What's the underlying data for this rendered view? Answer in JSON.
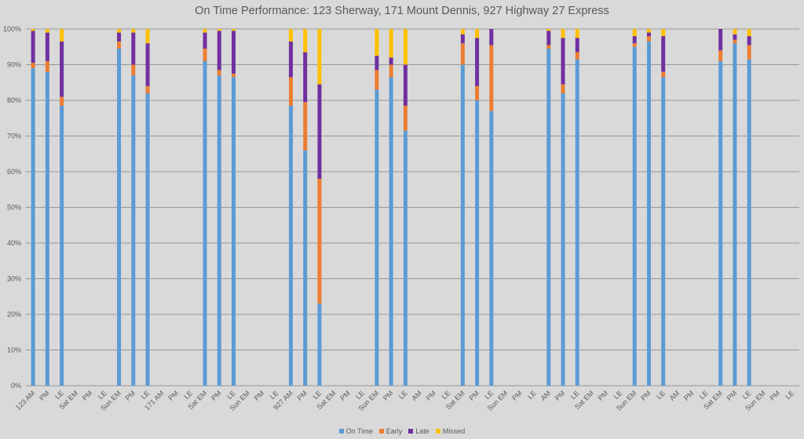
{
  "chart_data": {
    "type": "bar",
    "stacked": true,
    "title": "On Time Performance: 123 Sherway, 171 Mount Dennis, 927 Highway 27 Express",
    "xlabel": "",
    "ylabel": "",
    "ylim": [
      0,
      100
    ],
    "y_ticks": [
      "0%",
      "10%",
      "20%",
      "30%",
      "40%",
      "50%",
      "60%",
      "70%",
      "80%",
      "90%",
      "100%"
    ],
    "grid": true,
    "legend_position": "bottom",
    "category_labels": [
      "123 AM",
      "PM",
      "LE",
      "Sat EM",
      "PM",
      "LE",
      "Sun EM",
      "PM",
      "LE",
      "171 AM",
      "PM",
      "LE",
      "Sat EM",
      "PM",
      "LE",
      "Sun EM",
      "PM",
      "LE",
      "927 AM",
      "PM",
      "LE",
      "Sat EM",
      "PM",
      "LE",
      "Sun EM",
      "PM",
      "LE",
      "AM",
      "PM",
      "LE",
      "Sat EM",
      "PM",
      "LE",
      "Sun EM",
      "PM",
      "LE",
      "AM",
      "PM",
      "LE",
      "Sat EM",
      "PM",
      "LE",
      "Sun EM",
      "PM",
      "LE",
      "AM",
      "PM",
      "LE",
      "Sat EM",
      "PM",
      "LE",
      "Sun EM",
      "PM",
      "LE"
    ],
    "series": [
      {
        "name": "On Time",
        "color": "#5b9bd5",
        "values": [
          89,
          88,
          78.5,
          null,
          null,
          null,
          94.5,
          87,
          82,
          null,
          null,
          null,
          91,
          87,
          86.5,
          null,
          null,
          null,
          78.5,
          66,
          23,
          null,
          null,
          null,
          83,
          86.5,
          71.5,
          null,
          null,
          null,
          90,
          80,
          77,
          null,
          null,
          null,
          94.5,
          82,
          91.5,
          null,
          null,
          null,
          95,
          96.5,
          86.5,
          null,
          null,
          null,
          91,
          96,
          91.5,
          null,
          null,
          null
        ]
      },
      {
        "name": "Early",
        "color": "#ed7d31",
        "values": [
          1.5,
          3,
          2.5,
          null,
          null,
          null,
          2,
          3,
          2,
          null,
          null,
          null,
          3.5,
          1.5,
          1,
          null,
          null,
          null,
          8,
          13.5,
          35,
          null,
          null,
          null,
          5.5,
          3.5,
          7,
          null,
          null,
          null,
          6,
          4,
          18.5,
          null,
          null,
          null,
          1,
          2.5,
          2,
          null,
          null,
          null,
          1,
          1.5,
          1.5,
          null,
          null,
          null,
          3,
          1,
          4,
          null,
          null,
          null
        ]
      },
      {
        "name": "Late",
        "color": "#7030a0",
        "values": [
          9,
          8,
          15.5,
          null,
          null,
          null,
          2.5,
          9,
          12,
          null,
          null,
          null,
          4.5,
          11,
          12,
          null,
          null,
          null,
          10,
          14,
          26.5,
          null,
          null,
          null,
          4,
          2,
          11.5,
          null,
          null,
          null,
          2.5,
          13.5,
          4.5,
          null,
          null,
          null,
          4,
          13,
          4,
          null,
          null,
          null,
          2,
          1,
          10,
          null,
          null,
          null,
          6,
          1.5,
          2.5,
          null,
          null,
          null
        ]
      },
      {
        "name": "Missed",
        "color": "#ffc000",
        "values": [
          0.5,
          1,
          3.5,
          null,
          null,
          null,
          1,
          1,
          4,
          null,
          null,
          null,
          1,
          0.5,
          0.5,
          null,
          null,
          null,
          3.5,
          6.5,
          15.5,
          null,
          null,
          null,
          7.5,
          8,
          10,
          null,
          null,
          null,
          1.5,
          2.5,
          0,
          null,
          null,
          null,
          0.5,
          2.5,
          2.5,
          null,
          null,
          null,
          2,
          1,
          2,
          null,
          null,
          null,
          0,
          1.5,
          2,
          null,
          null,
          null
        ]
      }
    ]
  }
}
